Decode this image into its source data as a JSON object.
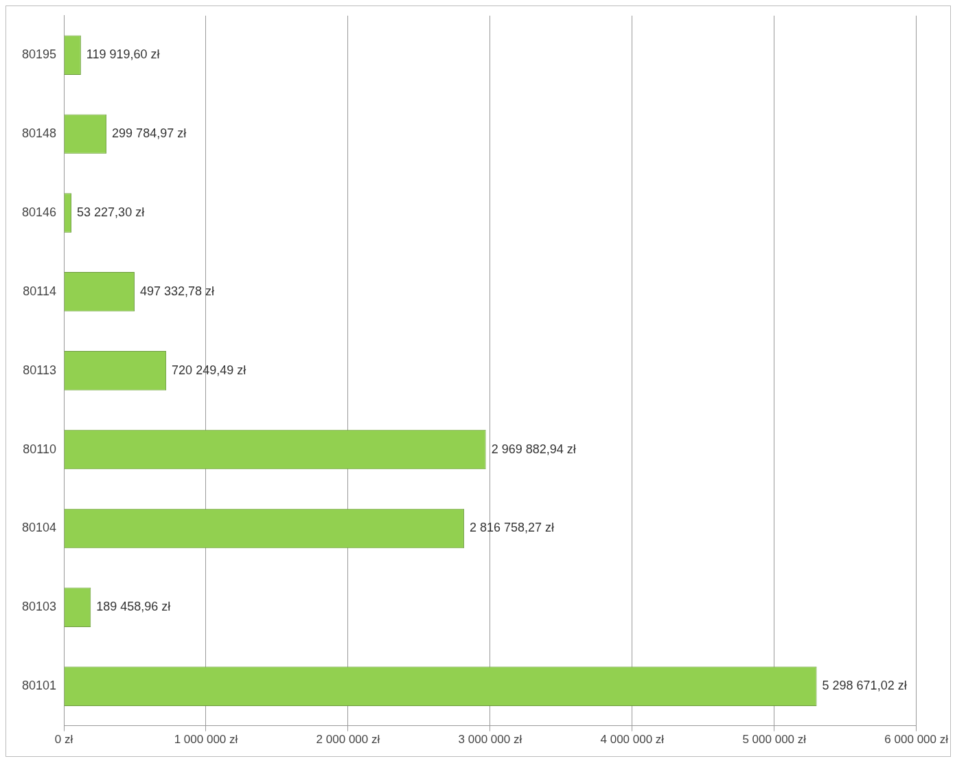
{
  "chart_data": {
    "type": "bar",
    "orientation": "horizontal",
    "categories": [
      "80195",
      "80148",
      "80146",
      "80114",
      "80113",
      "80110",
      "80104",
      "80103",
      "80101"
    ],
    "values": [
      119919.6,
      299784.97,
      53227.3,
      497332.78,
      720249.49,
      2969882.94,
      2816758.27,
      189458.96,
      5298671.02
    ],
    "value_labels": [
      "119 919,60 zł",
      "299 784,97 zł",
      "53 227,30 zł",
      "497 332,78 zł",
      "720 249,49 zł",
      "2 969 882,94 zł",
      "2 816 758,27 zł",
      "189 458,96 zł",
      "5 298 671,02 zł"
    ],
    "color": "#92d050",
    "xlim": [
      0,
      6000000
    ],
    "xticks": [
      {
        "value": 0,
        "label": "0 zł"
      },
      {
        "value": 1000000,
        "label": "1 000 000 zł"
      },
      {
        "value": 2000000,
        "label": "2 000 000 zł"
      },
      {
        "value": 3000000,
        "label": "3 000 000 zł"
      },
      {
        "value": 4000000,
        "label": "4 000 000 zł"
      },
      {
        "value": 5000000,
        "label": "5 000 000 zł"
      },
      {
        "value": 6000000,
        "label": "6 000 000 zł"
      }
    ],
    "grid": "x",
    "legend": false
  }
}
